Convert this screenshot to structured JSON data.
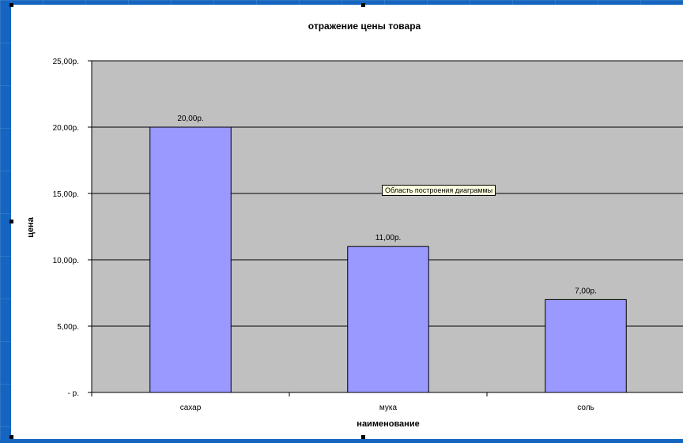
{
  "chart_data": {
    "type": "bar",
    "title": "отражение цены товара",
    "xlabel": "наименование",
    "ylabel": "цена",
    "categories": [
      "сахар",
      "мука",
      "соль"
    ],
    "values": [
      20,
      11,
      7
    ],
    "data_labels": [
      "20,00р.",
      "11,00р.",
      "7,00р."
    ],
    "y_ticks": [
      {
        "value": 0,
        "label": "-   р."
      },
      {
        "value": 5,
        "label": "5,00р."
      },
      {
        "value": 10,
        "label": "10,00р."
      },
      {
        "value": 15,
        "label": "15,00р."
      },
      {
        "value": 20,
        "label": "20,00р."
      },
      {
        "value": 25,
        "label": "25,00р."
      }
    ],
    "ylim": [
      0,
      25
    ],
    "grid": true,
    "legend": "none"
  },
  "colors": {
    "bar_fill": "#9999ff",
    "plot_bg": "#c0c0c0",
    "slide_bg": "#1565c0"
  },
  "tooltip": {
    "text": "Область построения диаграммы"
  }
}
